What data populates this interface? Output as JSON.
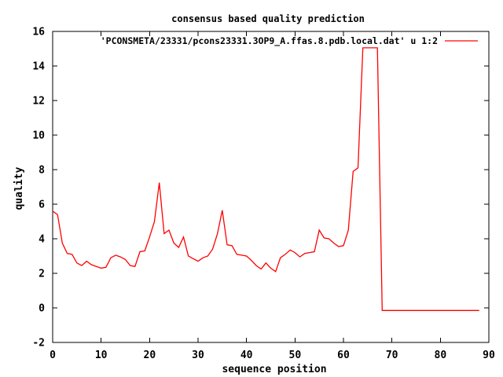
{
  "chart": {
    "title": "consensus based quality prediction",
    "legend_label": "'PCONSMETA/23331/pcons23331.3OP9_A.ffas.8.pdb.local.dat' u 1:2",
    "xlabel": "sequence position",
    "ylabel": "quality"
  },
  "chart_data": {
    "type": "line",
    "title": "consensus based quality prediction",
    "xlabel": "sequence position",
    "ylabel": "quality",
    "legend_entries": [
      "'PCONSMETA/23331/pcons23331.3OP9_A.ffas.8.pdb.local.dat' u 1:2"
    ],
    "legend_position": "top-center-inside",
    "grid": false,
    "xlim": [
      0,
      90
    ],
    "ylim": [
      -2,
      16
    ],
    "xticks": [
      0,
      10,
      20,
      30,
      40,
      50,
      60,
      70,
      80,
      90
    ],
    "yticks": [
      -2,
      0,
      2,
      4,
      6,
      8,
      10,
      12,
      14,
      16
    ],
    "colors": {
      "line": "#ff0000",
      "axis": "#000000",
      "background": "#ffffff"
    },
    "series": [
      {
        "name": "'PCONSMETA/23331/pcons23331.3OP9_A.ffas.8.pdb.local.dat' u 1:2",
        "x_start": 0,
        "x_step": 1,
        "values": [
          5.6,
          5.4,
          3.75,
          3.15,
          3.1,
          2.6,
          2.45,
          2.7,
          2.5,
          2.4,
          2.3,
          2.35,
          2.9,
          3.05,
          2.95,
          2.8,
          2.45,
          2.4,
          3.25,
          3.3,
          4.1,
          5.0,
          7.25,
          4.3,
          4.5,
          3.75,
          3.5,
          4.1,
          3.0,
          2.85,
          2.7,
          2.9,
          3.0,
          3.4,
          4.3,
          5.65,
          3.65,
          3.6,
          3.1,
          3.05,
          3.0,
          2.75,
          2.45,
          2.25,
          2.6,
          2.3,
          2.1,
          2.9,
          3.1,
          3.35,
          3.2,
          2.95,
          3.15,
          3.2,
          3.25,
          4.5,
          4.05,
          4.0,
          3.75,
          3.55,
          3.6,
          4.5,
          7.9,
          8.1,
          15.05,
          15.05,
          15.05,
          15.05,
          -0.15,
          -0.15,
          -0.15,
          -0.15,
          -0.15,
          -0.15,
          -0.15,
          -0.15,
          -0.15,
          -0.15,
          -0.15,
          -0.15,
          -0.15,
          -0.15,
          -0.15,
          -0.15,
          -0.15,
          -0.15,
          -0.15,
          -0.15,
          -0.15
        ]
      }
    ]
  }
}
